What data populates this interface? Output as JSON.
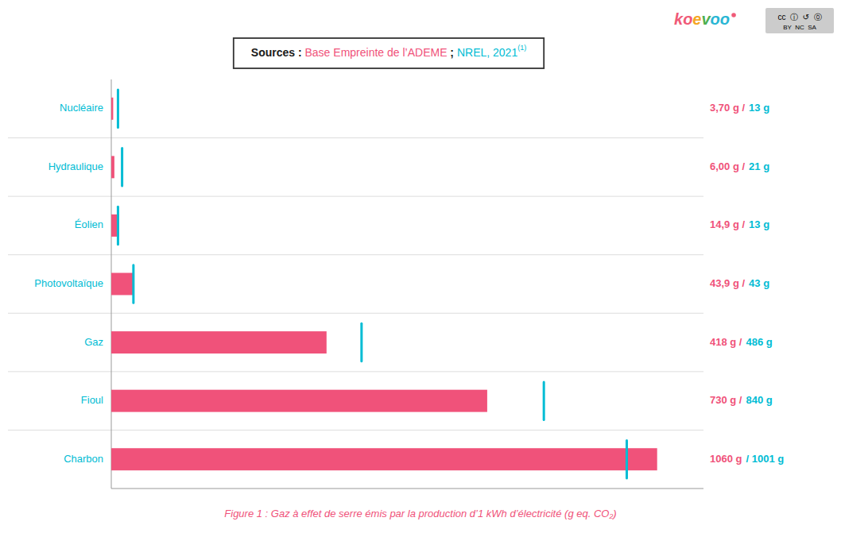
{
  "chart_data": {
    "type": "bar",
    "orientation": "horizontal",
    "categories": [
      "Nucléaire",
      "Hydraulique",
      "Éolien",
      "Photovoltaïque",
      "Gaz",
      "Fioul",
      "Charbon"
    ],
    "series": [
      {
        "name": "Base Empreinte de l’ADEME",
        "type": "bar",
        "color": "#F0527A",
        "values": [
          3.7,
          6.0,
          14.9,
          43.9,
          418,
          730,
          1060
        ],
        "value_labels": [
          "3,70 g /",
          "6,00 g /",
          "14,9 g /",
          "43,9 g /",
          "418 g /",
          "730 g /",
          "1060 g"
        ]
      },
      {
        "name": "NREL, 2021",
        "type": "scatter",
        "marker": "vline",
        "color": "#00BCD4",
        "values": [
          13,
          21,
          13,
          43,
          486,
          840,
          1001
        ],
        "value_labels": [
          "13 g",
          "21 g",
          "13 g",
          "43 g",
          "486 g",
          "840 g",
          "/ 1001 g"
        ]
      }
    ],
    "xlim": [
      0,
      1150
    ],
    "tick_labels": false,
    "data_labels": true,
    "legend": "top",
    "annotations": [
      "Sources : ",
      " ; ",
      "(1)",
      "koevoo",
      "cc  ⓘ  ↺  ⓪",
      "BY  NC  SA",
      "Figure 1 : Gaz à effet de serre émis par la production d’1 kWh d’électricité (g eq. CO₂)"
    ]
  }
}
